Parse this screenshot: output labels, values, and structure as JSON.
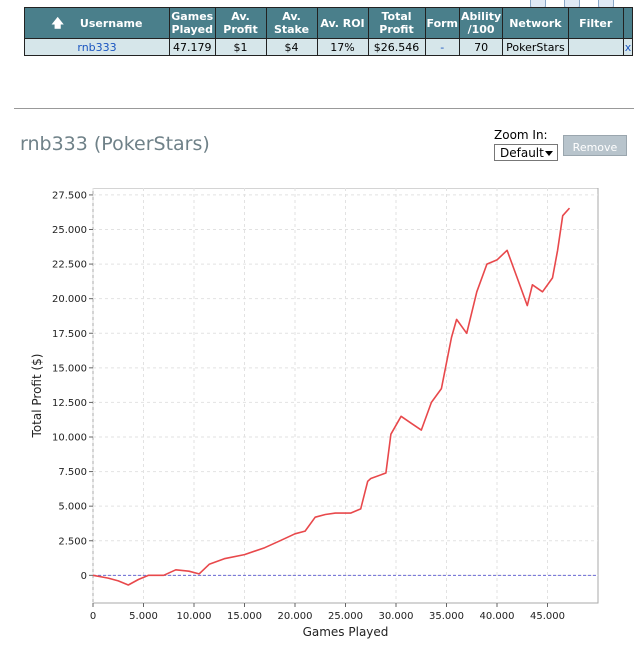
{
  "table": {
    "headers": [
      "Username",
      "Games Played",
      "Av. Profit",
      "Av. Stake",
      "Av. ROI",
      "Total Profit",
      "Form",
      "Ability /100",
      "Network",
      "Filter"
    ],
    "row": {
      "username": "rnb333",
      "games_played": "47.179",
      "av_profit": "$1",
      "av_stake": "$4",
      "av_roi": "17%",
      "total_profit": "$26.546",
      "form": "-",
      "ability": "70",
      "network": "PokerStars",
      "filter": "",
      "remove_x": "x"
    }
  },
  "player_title": "rnb333 (PokerStars)",
  "zoom": {
    "label": "Zoom In:",
    "selected": "Default"
  },
  "remove_label": "Remove",
  "colors": {
    "header_bg": "#4a7f8b",
    "row_bg": "#d6e6ea",
    "line": "#e8484b",
    "zero_line": "#6b6bd6"
  },
  "chart_data": {
    "type": "line",
    "xlabel": "Games Played",
    "ylabel": "Total Profit ($)",
    "xlim": [
      0,
      50000
    ],
    "ylim": [
      -2000,
      28000
    ],
    "x_ticks": [
      0,
      5000,
      10000,
      15000,
      20000,
      25000,
      30000,
      35000,
      40000,
      45000
    ],
    "x_tick_labels": [
      "0",
      "5.000",
      "10.000",
      "15.000",
      "20.000",
      "25.000",
      "30.000",
      "35.000",
      "40.000",
      "45.000"
    ],
    "y_ticks": [
      0,
      2500,
      5000,
      7500,
      10000,
      12500,
      15000,
      17500,
      20000,
      22500,
      25000,
      27500
    ],
    "y_tick_labels": [
      "0",
      "2.500",
      "5.000",
      "7.500",
      "10.000",
      "12.500",
      "15.000",
      "17.500",
      "20.000",
      "22.500",
      "25.000",
      "27.500"
    ],
    "grid": true,
    "series": [
      {
        "x": [
          0,
          1500,
          2500,
          3500,
          4500,
          5500,
          7000,
          8200,
          9500,
          10500,
          11500,
          13000,
          15000,
          17000,
          18500,
          20000,
          21000,
          22000,
          23000,
          24000,
          25500,
          26500,
          27200,
          27500,
          29000,
          29500,
          30500,
          31500,
          32500,
          33500,
          34500,
          35500,
          36000,
          37000,
          38000,
          39000,
          40000,
          41000,
          42000,
          43000,
          43500,
          44500,
          45500,
          46000,
          46500,
          47179
        ],
        "y": [
          0,
          -200,
          -400,
          -700,
          -300,
          0,
          0,
          400,
          300,
          100,
          800,
          1200,
          1500,
          2000,
          2500,
          3000,
          3200,
          4200,
          4400,
          4500,
          4500,
          4800,
          6800,
          7000,
          7400,
          10200,
          11500,
          11000,
          10500,
          12500,
          13500,
          17200,
          18500,
          17500,
          20500,
          22500,
          22800,
          23500,
          21500,
          19500,
          21000,
          20500,
          21500,
          23500,
          26000,
          26546
        ]
      }
    ],
    "zero_line": 0
  }
}
